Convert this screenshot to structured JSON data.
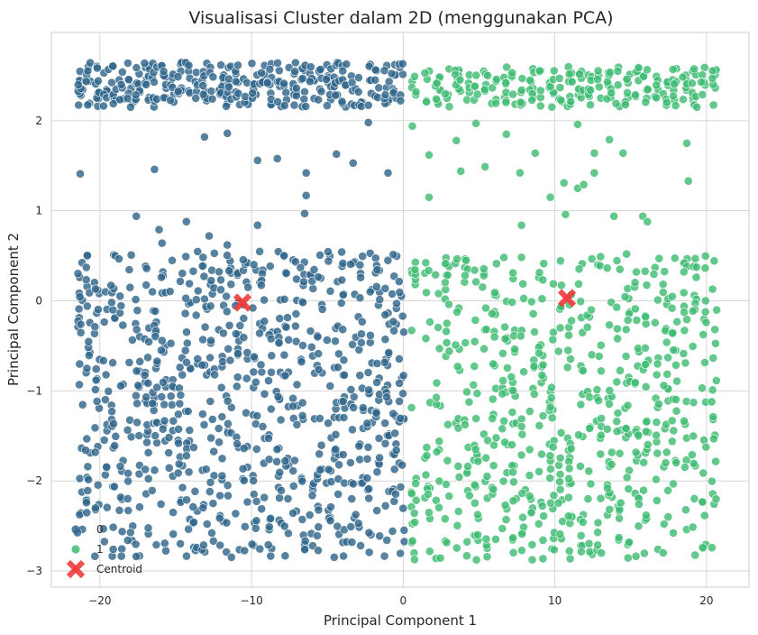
{
  "chart_data": {
    "type": "scatter",
    "title": "Visualisasi Cluster dalam 2D (menggunakan PCA)",
    "xlabel": "Principal Component 1",
    "ylabel": "Principal Component 2",
    "xlim": [
      -23.2,
      22.8
    ],
    "ylim": [
      -3.18,
      2.98
    ],
    "xticks": [
      -20,
      -10,
      0,
      10,
      20
    ],
    "yticks": [
      -3,
      -2,
      -1,
      0,
      1,
      2
    ],
    "grid": true,
    "legend_position": "bottom-left",
    "series": [
      {
        "name": "0",
        "color": "#31668b",
        "x_range": [
          -21.5,
          0
        ],
        "columns": [
          -21.3,
          -20.8,
          -20.2,
          -19.6,
          -19.1,
          -18.6,
          -18.0,
          -17.5,
          -16.9,
          -16.4,
          -15.8,
          -15.3,
          -14.7,
          -14.2,
          -13.7,
          -13.1,
          -12.6,
          -12.0,
          -11.5,
          -10.9,
          -10.4,
          -9.8,
          -9.3,
          -8.8,
          -8.2,
          -7.7,
          -7.1,
          -6.6,
          -6.0,
          -5.5,
          -4.9,
          -4.4,
          -3.9,
          -3.3,
          -2.8,
          -2.2,
          -1.7,
          -1.1,
          -0.6,
          -0.1
        ],
        "sample_points": [
          [
            -21.3,
            1.41
          ],
          [
            -13.1,
            1.82
          ],
          [
            -11.6,
            1.86
          ],
          [
            -16.4,
            1.46
          ],
          [
            -9.6,
            1.56
          ],
          [
            -8.3,
            1.58
          ],
          [
            -6.4,
            1.42
          ],
          [
            -6.4,
            1.17
          ],
          [
            -4.4,
            1.63
          ],
          [
            -3.3,
            1.53
          ],
          [
            -1.0,
            1.42
          ],
          [
            -2.3,
            1.98
          ],
          [
            -17.6,
            0.94
          ],
          [
            -14.3,
            0.88
          ],
          [
            -16.1,
            0.79
          ],
          [
            -9.6,
            0.84
          ],
          [
            -6.5,
            0.97
          ],
          [
            -15.9,
            0.64
          ],
          [
            -12.8,
            0.72
          ],
          [
            -11.6,
            0.62
          ]
        ],
        "y_bands": [
          [
            2.15,
            2.65
          ],
          [
            -2.85,
            0.55
          ]
        ]
      },
      {
        "name": "1",
        "color": "#3fbc73",
        "x_range": [
          0.3,
          21.0
        ],
        "columns": [
          0.7,
          1.6,
          2.3,
          2.9,
          3.6,
          4.2,
          4.8,
          5.4,
          6.0,
          6.7,
          7.3,
          7.9,
          8.5,
          9.1,
          9.8,
          10.4,
          11.0,
          11.7,
          12.3,
          12.9,
          13.6,
          14.2,
          14.8,
          15.4,
          16.0,
          16.7,
          17.3,
          17.9,
          18.6,
          19.2,
          19.8,
          20.5
        ],
        "sample_points": [
          [
            0.6,
            1.94
          ],
          [
            1.7,
            1.62
          ],
          [
            1.7,
            1.15
          ],
          [
            3.5,
            1.78
          ],
          [
            3.8,
            1.44
          ],
          [
            4.8,
            1.97
          ],
          [
            5.4,
            1.49
          ],
          [
            6.8,
            1.85
          ],
          [
            7.7,
            1.42
          ],
          [
            8.7,
            1.64
          ],
          [
            9.7,
            1.15
          ],
          [
            10.6,
            1.31
          ],
          [
            11.5,
            1.96
          ],
          [
            11.5,
            1.25
          ],
          [
            12.6,
            1.64
          ],
          [
            13.6,
            1.79
          ],
          [
            14.5,
            1.64
          ],
          [
            18.7,
            1.75
          ],
          [
            18.8,
            1.33
          ],
          [
            7.8,
            0.84
          ],
          [
            10.7,
            0.96
          ],
          [
            13.9,
            0.94
          ],
          [
            15.8,
            0.94
          ],
          [
            16.1,
            0.88
          ],
          [
            11.9,
            1.29
          ],
          [
            12.6,
            1.42
          ]
        ],
        "y_bands": [
          [
            2.15,
            2.6
          ],
          [
            -2.9,
            0.52
          ]
        ]
      }
    ],
    "centroids": {
      "name": "Centroid",
      "color": "#f03b3b",
      "marker": "x",
      "points": [
        [
          -10.6,
          -0.02
        ],
        [
          10.8,
          0.03
        ]
      ]
    }
  }
}
